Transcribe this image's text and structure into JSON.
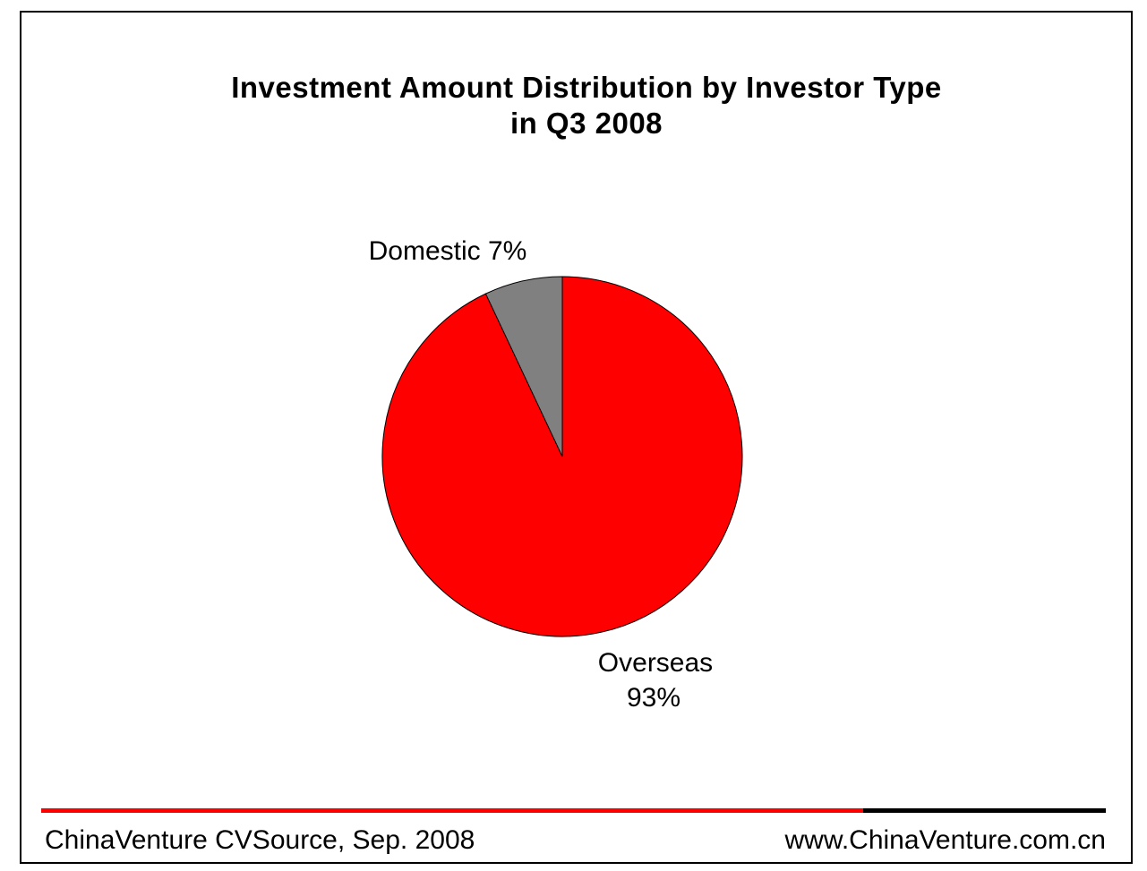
{
  "chart_data": {
    "type": "pie",
    "title": "Investment Amount Distribution by Investor Type",
    "subtitle": "in Q3 2008",
    "slices": [
      {
        "name": "Domestic",
        "value": 7,
        "label": "Domestic 7%",
        "color": "#808080"
      },
      {
        "name": "Overseas",
        "value": 93,
        "label_line1": "Overseas",
        "label_line2": "93%",
        "color": "#ff0000"
      }
    ],
    "legend": "none",
    "start_angle_deg": 0,
    "direction": "counterclockwise"
  },
  "footer": {
    "source": "ChinaVenture CVSource, Sep. 2008",
    "website": "www.ChinaVenture.com.cn",
    "line_colors": [
      "#ff0000",
      "#000000"
    ]
  }
}
